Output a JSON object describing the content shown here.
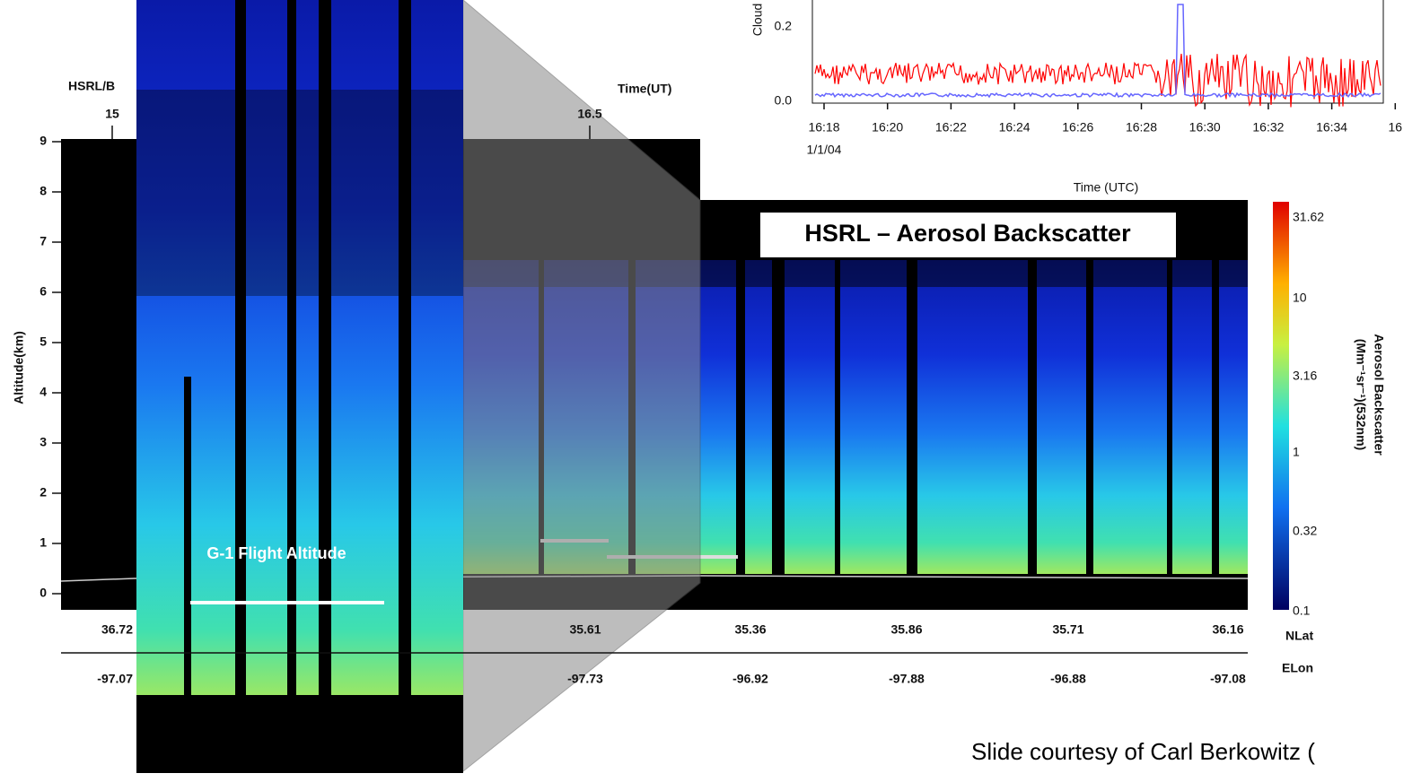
{
  "slide": {
    "credit": "Slide courtesy of Carl Berkowitz (",
    "inset_label": "G-1 Flight Altitude",
    "panel_label": "HSRL – Aerosol Backscatter"
  },
  "main_plot": {
    "instrument_label": "HSRL/B",
    "time_label": "Time(UT)",
    "time_ticks": [
      "15",
      "16.5"
    ],
    "y_label": "Altitude(km)",
    "y_ticks": [
      "9",
      "8",
      "7",
      "6",
      "5",
      "4",
      "3",
      "2",
      "1",
      "0"
    ],
    "lat_ticks": [
      "36.72",
      "35.61",
      "35.36",
      "35.86",
      "35.71",
      "36.16"
    ],
    "lat_label": "NLat",
    "lon_ticks": [
      "-97.07",
      "-97.73",
      "-96.92",
      "-97.88",
      "-96.88",
      "-97.08"
    ],
    "lon_label": "ELon",
    "colorbar_ticks": [
      "31.62",
      "10",
      "3.16",
      "1",
      "0.32",
      "0.1"
    ],
    "colorbar_label": "Aerosol Backscatter",
    "colorbar_unit": "(Mm⁻¹sr⁻¹)(532nm)"
  },
  "top_plot": {
    "y_label": "Cloud",
    "y_ticks": [
      "0.2",
      "0.0"
    ],
    "x_ticks": [
      "16:18",
      "16:20",
      "16:22",
      "16:24",
      "16:26",
      "16:28",
      "16:30",
      "16:32",
      "16:34",
      "16"
    ],
    "date": "1/1/04",
    "x_label": "Time (UTC)"
  }
}
